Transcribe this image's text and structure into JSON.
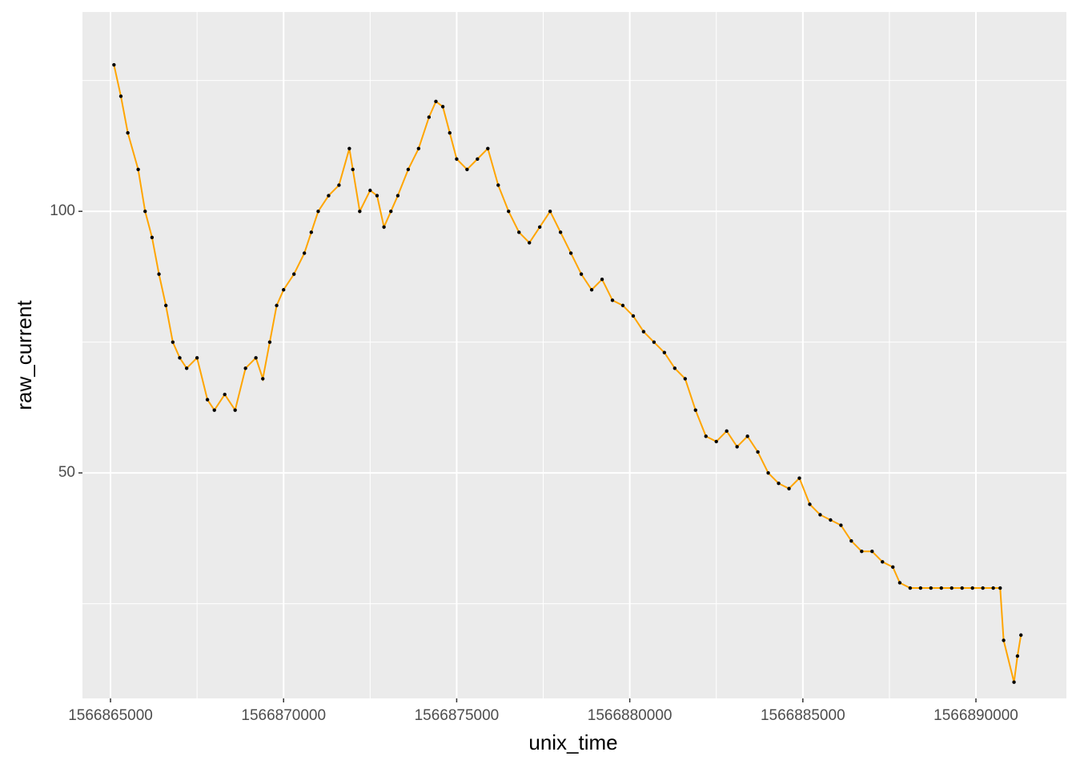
{
  "chart_data": {
    "type": "line",
    "x_label": "unix_time",
    "y_label": "raw_current",
    "x": [
      1566865100,
      1566865300,
      1566865500,
      1566865800,
      1566866000,
      1566866200,
      1566866400,
      1566866600,
      1566866800,
      1566867000,
      1566867200,
      1566867500,
      1566867800,
      1566868000,
      1566868300,
      1566868600,
      1566868900,
      1566869200,
      1566869400,
      1566869600,
      1566869800,
      1566870000,
      1566870300,
      1566870600,
      1566870800,
      1566871000,
      1566871300,
      1566871600,
      1566871900,
      1566872000,
      1566872200,
      1566872500,
      1566872700,
      1566872900,
      1566873100,
      1566873300,
      1566873600,
      1566873900,
      1566874200,
      1566874400,
      1566874600,
      1566874800,
      1566875000,
      1566875300,
      1566875600,
      1566875900,
      1566876200,
      1566876500,
      1566876800,
      1566877100,
      1566877400,
      1566877700,
      1566878000,
      1566878300,
      1566878600,
      1566878900,
      1566879200,
      1566879500,
      1566879800,
      1566880100,
      1566880400,
      1566880700,
      1566881000,
      1566881300,
      1566881600,
      1566881900,
      1566882200,
      1566882500,
      1566882800,
      1566883100,
      1566883400,
      1566883700,
      1566884000,
      1566884300,
      1566884600,
      1566884900,
      1566885200,
      1566885500,
      1566885800,
      1566886100,
      1566886400,
      1566886700,
      1566887000,
      1566887300,
      1566887600,
      1566887800,
      1566888100,
      1566888400,
      1566888700,
      1566889000,
      1566889300,
      1566889600,
      1566889900,
      1566890200,
      1566890500,
      1566890700,
      1566890800,
      1566891100,
      1566891200,
      1566891300
    ],
    "series": [
      {
        "name": "raw_current",
        "color": "#FFA500",
        "point_color": "#000000",
        "values": [
          128,
          122,
          115,
          108,
          100,
          95,
          88,
          82,
          75,
          72,
          70,
          72,
          64,
          62,
          65,
          62,
          70,
          72,
          68,
          75,
          82,
          85,
          88,
          92,
          96,
          100,
          103,
          105,
          112,
          108,
          100,
          104,
          103,
          97,
          100,
          103,
          108,
          112,
          118,
          121,
          120,
          115,
          110,
          108,
          110,
          112,
          105,
          100,
          96,
          94,
          97,
          100,
          96,
          92,
          88,
          85,
          87,
          83,
          82,
          80,
          77,
          75,
          73,
          70,
          68,
          62,
          57,
          56,
          58,
          55,
          57,
          54,
          50,
          48,
          47,
          49,
          44,
          42,
          41,
          40,
          37,
          35,
          35,
          33,
          32,
          29,
          28,
          28,
          28,
          28,
          28,
          28,
          28,
          28,
          28,
          28,
          18,
          10,
          15,
          19
        ]
      }
    ],
    "xlim": [
      1566864190,
      1566892613
    ],
    "ylim": [
      6.9,
      138.1
    ],
    "xticks": [
      1566865000,
      1566870000,
      1566875000,
      1566880000,
      1566885000,
      1566890000
    ],
    "yticks": [
      50,
      100
    ],
    "minor_xticks": [
      1566867500,
      1566872500,
      1566877500,
      1566882500,
      1566887500
    ],
    "minor_yticks": [
      25,
      75,
      125
    ],
    "grid": true
  }
}
